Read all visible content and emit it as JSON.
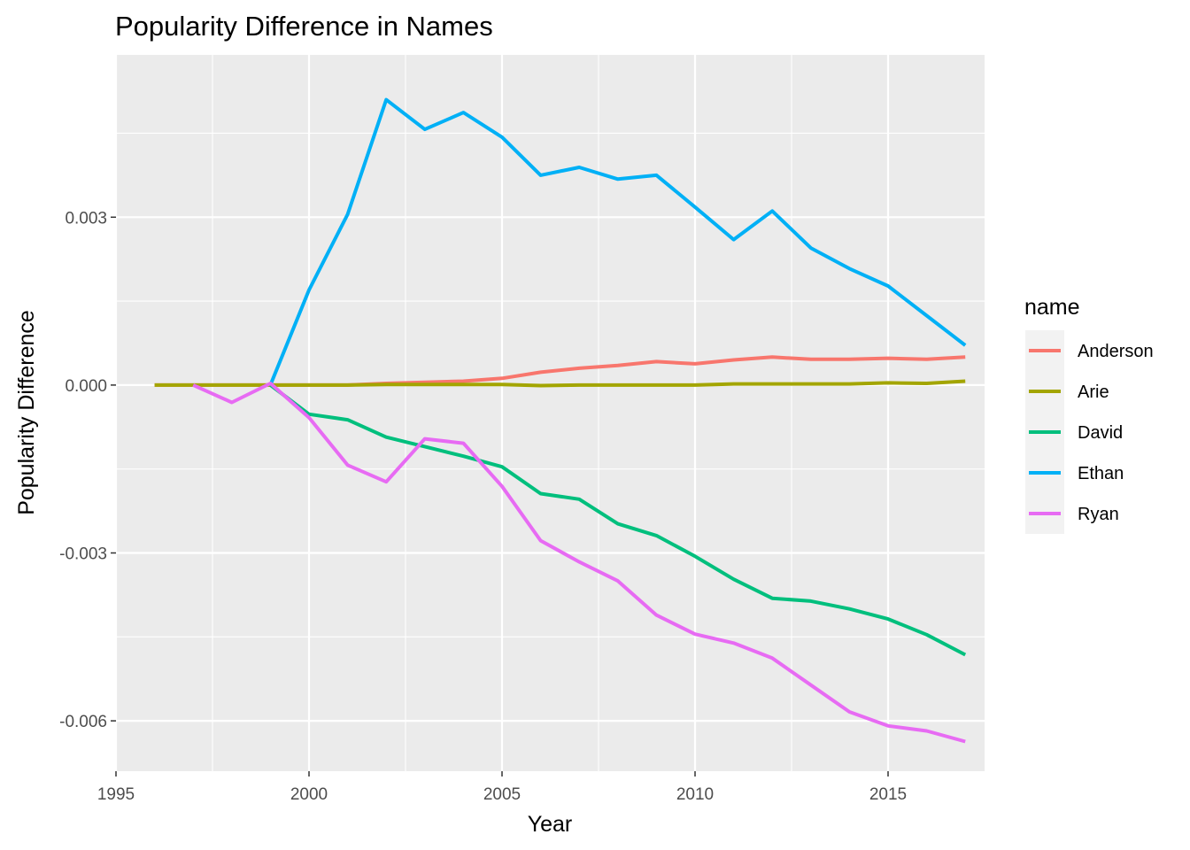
{
  "chart_data": {
    "type": "line",
    "title": "Popularity Difference in Names",
    "xlabel": "Year",
    "ylabel": "Popularity Difference",
    "xlim": [
      1995,
      2017.5
    ],
    "ylim": [
      -0.0069,
      0.0059
    ],
    "x_ticks": [
      1995,
      2000,
      2005,
      2010,
      2015
    ],
    "x_tick_labels": [
      "1995",
      "2000",
      "2005",
      "2010",
      "2015"
    ],
    "y_ticks": [
      0.003,
      0.0,
      -0.003,
      -0.006
    ],
    "y_tick_labels": [
      "0.003",
      "0.000",
      "-0.003",
      "-0.006"
    ],
    "grid": true,
    "legend": {
      "title": "name",
      "position": "right"
    },
    "series": [
      {
        "name": "Anderson",
        "color": "#F8766D",
        "x": [
          1996,
          1997,
          1998,
          1999,
          2000,
          2001,
          2002,
          2003,
          2004,
          2005,
          2006,
          2007,
          2008,
          2009,
          2010,
          2011,
          2012,
          2013,
          2014,
          2015,
          2016,
          2017
        ],
        "y": [
          0.0,
          0.0,
          0.0,
          0.0,
          0.0,
          0.0,
          3e-05,
          5e-05,
          7e-05,
          0.00012,
          0.00023,
          0.0003,
          0.00035,
          0.00042,
          0.00038,
          0.00045,
          0.0005,
          0.00046,
          0.00046,
          0.00048,
          0.00046,
          0.0005
        ]
      },
      {
        "name": "Arie",
        "color": "#A3A500",
        "x": [
          1996,
          1997,
          1998,
          1999,
          2000,
          2001,
          2002,
          2003,
          2004,
          2005,
          2006,
          2007,
          2008,
          2009,
          2010,
          2011,
          2012,
          2013,
          2014,
          2015,
          2016,
          2017
        ],
        "y": [
          0.0,
          0.0,
          0.0,
          0.0,
          0.0,
          0.0,
          1e-05,
          1e-05,
          1e-05,
          1e-05,
          -1e-05,
          0.0,
          0.0,
          0.0,
          0.0,
          2e-05,
          2e-05,
          2e-05,
          2e-05,
          4e-05,
          3e-05,
          7e-05
        ]
      },
      {
        "name": "David",
        "color": "#00BF7D",
        "x": [
          1999,
          2000,
          2001,
          2002,
          2003,
          2004,
          2005,
          2006,
          2007,
          2008,
          2009,
          2010,
          2011,
          2012,
          2013,
          2014,
          2015,
          2016,
          2017
        ],
        "y": [
          0.0,
          -0.00052,
          -0.00062,
          -0.00093,
          -0.0011,
          -0.00127,
          -0.00146,
          -0.00194,
          -0.00204,
          -0.00248,
          -0.00269,
          -0.00306,
          -0.00347,
          -0.00381,
          -0.00386,
          -0.004,
          -0.00418,
          -0.00446,
          -0.00482
        ]
      },
      {
        "name": "Ethan",
        "color": "#00B0F6",
        "x": [
          1999,
          2000,
          2001,
          2002,
          2003,
          2004,
          2005,
          2006,
          2007,
          2008,
          2009,
          2010,
          2011,
          2012,
          2013,
          2014,
          2015,
          2016,
          2017
        ],
        "y": [
          0.0,
          0.0017,
          0.00305,
          0.0051,
          0.00457,
          0.00487,
          0.00443,
          0.00375,
          0.00389,
          0.00368,
          0.00375,
          0.00318,
          0.0026,
          0.00311,
          0.00245,
          0.00208,
          0.00177,
          0.00124,
          0.00071
        ]
      },
      {
        "name": "Ryan",
        "color": "#E76BF3",
        "x": [
          1997,
          1998,
          1999,
          2000,
          2001,
          2002,
          2003,
          2004,
          2005,
          2006,
          2007,
          2008,
          2009,
          2010,
          2011,
          2012,
          2013,
          2014,
          2015,
          2016,
          2017
        ],
        "y": [
          0.0,
          -0.00031,
          3e-05,
          -0.00058,
          -0.00143,
          -0.00173,
          -0.00096,
          -0.00104,
          -0.00181,
          -0.00278,
          -0.00316,
          -0.0035,
          -0.00411,
          -0.00445,
          -0.00461,
          -0.00488,
          -0.00536,
          -0.00584,
          -0.00609,
          -0.00618,
          -0.00637
        ]
      }
    ]
  }
}
